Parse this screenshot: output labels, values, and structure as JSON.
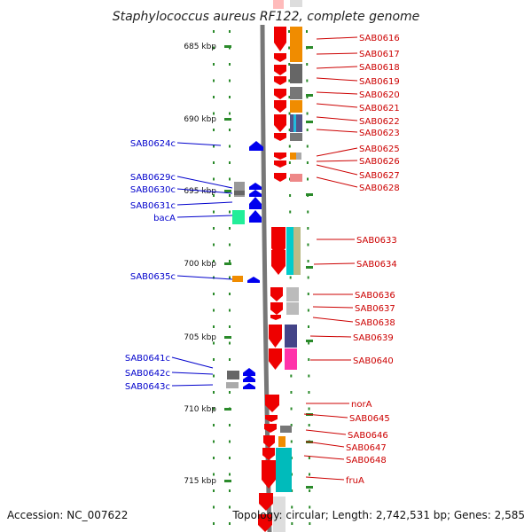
{
  "title": "Staphylococcus aureus RF122, complete genome",
  "kbp_labels": [
    "685 kbp",
    "690 kbp",
    "695 kbp",
    "700 kbp",
    "705 kbp",
    "710 kbp",
    "715 kbp"
  ],
  "right_labels": [
    "SAB0616",
    "SAB0617",
    "SAB0618",
    "SAB0619",
    "SAB0620",
    "SAB0621",
    "SAB0622",
    "SAB0623",
    "SAB0625",
    "SAB0626",
    "SAB0627",
    "SAB0628",
    "SAB0633",
    "SAB0634",
    "SAB0636",
    "SAB0637",
    "SAB0638",
    "SAB0639",
    "SAB0640",
    "norA",
    "SAB0645",
    "SAB0646",
    "SAB0647",
    "SAB0648",
    "fruA"
  ],
  "left_labels": [
    "SAB0624c",
    "SAB0629c",
    "SAB0630c",
    "SAB0631c",
    "bacA",
    "SAB0635c",
    "SAB0641c",
    "SAB0642c",
    "SAB0643c"
  ],
  "colors": {
    "forward_gene": "#ee0000",
    "reverse_gene": "#0000ee",
    "right_label": "#cc0000",
    "left_label": "#0000cc",
    "kbp_tick": "#228822",
    "backbone": "#888888"
  },
  "footer": {
    "accession": "Accession: NC_007622",
    "topology": "Topology: circular; Length: 2,742,531 bp; Genes: 2,585"
  }
}
